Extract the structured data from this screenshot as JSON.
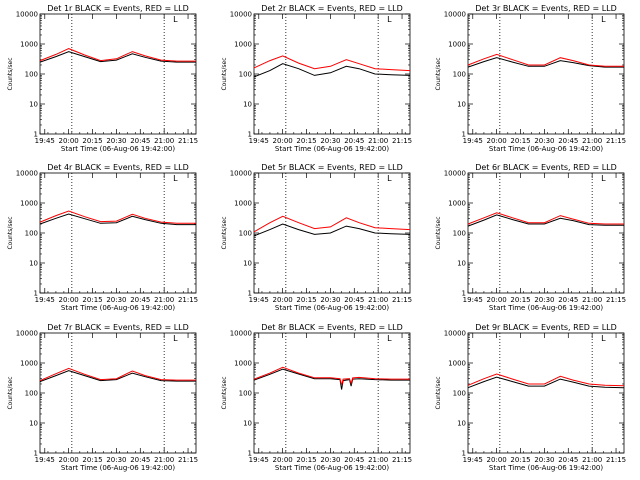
{
  "figure": {
    "y_tick_labels": [
      "1",
      "10",
      "100",
      "1000",
      "10000"
    ],
    "x_tick_labels": [
      "19:45",
      "20:00",
      "20:15",
      "20:30",
      "20:45",
      "21:00",
      "21:15"
    ],
    "xlabel": "Start Time (06-Aug-06 19:42:00)",
    "ylabel": "Counts/sec",
    "corner_marker": "L",
    "series_colors": {
      "events": "#000000",
      "lld": "#ff0000"
    }
  },
  "chart_data": [
    {
      "type": "line",
      "title": "Det 1r BLACK = Events, RED = LLD",
      "xlabel": "Start Time (06-Aug-06 19:42:00)",
      "ylabel": "Counts/sec",
      "x_unit": "minutes after 19:42:00",
      "xlim": [
        0,
        98
      ],
      "ylim": [
        1,
        10000
      ],
      "yscale": "log",
      "vlines": [
        20,
        78
      ],
      "series": [
        {
          "name": "Events",
          "color": "#000000",
          "x": [
            0,
            10,
            18,
            28,
            38,
            48,
            58,
            66,
            76,
            86,
            98
          ],
          "values": [
            250,
            380,
            560,
            380,
            260,
            290,
            470,
            360,
            270,
            250,
            250
          ]
        },
        {
          "name": "LLD",
          "color": "#ff0000",
          "x": [
            0,
            10,
            18,
            28,
            38,
            48,
            58,
            66,
            76,
            86,
            98
          ],
          "values": [
            280,
            450,
            700,
            430,
            280,
            320,
            560,
            400,
            290,
            270,
            270
          ]
        }
      ]
    },
    {
      "type": "line",
      "title": "Det 2r BLACK = Events, RED = LLD",
      "xlabel": "Start Time (06-Aug-06 19:42:00)",
      "ylabel": "Counts/sec",
      "x_unit": "minutes after 19:42:00",
      "xlim": [
        0,
        98
      ],
      "ylim": [
        1,
        10000
      ],
      "yscale": "log",
      "vlines": [
        20,
        78
      ],
      "series": [
        {
          "name": "Events",
          "color": "#000000",
          "x": [
            0,
            10,
            18,
            28,
            38,
            48,
            58,
            66,
            76,
            86,
            98
          ],
          "values": [
            80,
            130,
            220,
            150,
            90,
            110,
            180,
            150,
            100,
            95,
            90
          ]
        },
        {
          "name": "LLD",
          "color": "#ff0000",
          "x": [
            0,
            10,
            18,
            28,
            38,
            48,
            58,
            66,
            76,
            86,
            98
          ],
          "values": [
            160,
            280,
            400,
            230,
            150,
            180,
            300,
            220,
            150,
            140,
            130
          ]
        }
      ]
    },
    {
      "type": "line",
      "title": "Det 3r BLACK = Events, RED = LLD",
      "xlabel": "Start Time (06-Aug-06 19:42:00)",
      "ylabel": "Counts/sec",
      "x_unit": "minutes after 19:42:00",
      "xlim": [
        0,
        98
      ],
      "ylim": [
        1,
        10000
      ],
      "yscale": "log",
      "vlines": [
        20,
        78
      ],
      "series": [
        {
          "name": "Events",
          "color": "#000000",
          "x": [
            0,
            10,
            18,
            28,
            38,
            48,
            58,
            66,
            76,
            86,
            98
          ],
          "values": [
            170,
            260,
            350,
            250,
            180,
            180,
            280,
            240,
            190,
            170,
            170
          ]
        },
        {
          "name": "LLD",
          "color": "#ff0000",
          "x": [
            0,
            10,
            18,
            28,
            38,
            48,
            58,
            66,
            76,
            86,
            98
          ],
          "values": [
            200,
            320,
            450,
            300,
            200,
            200,
            350,
            280,
            200,
            180,
            180
          ]
        }
      ]
    },
    {
      "type": "line",
      "title": "Det 4r BLACK = Events, RED = LLD",
      "xlabel": "Start Time (06-Aug-06 19:42:00)",
      "ylabel": "Counts/sec",
      "x_unit": "minutes after 19:42:00",
      "xlim": [
        0,
        98
      ],
      "ylim": [
        1,
        10000
      ],
      "yscale": "log",
      "vlines": [
        20,
        78
      ],
      "series": [
        {
          "name": "Events",
          "color": "#000000",
          "x": [
            0,
            10,
            18,
            28,
            38,
            48,
            58,
            66,
            76,
            86,
            98
          ],
          "values": [
            200,
            310,
            430,
            300,
            210,
            220,
            360,
            280,
            210,
            190,
            190
          ]
        },
        {
          "name": "LLD",
          "color": "#ff0000",
          "x": [
            0,
            10,
            18,
            28,
            38,
            48,
            58,
            66,
            76,
            86,
            98
          ],
          "values": [
            230,
            380,
            540,
            350,
            240,
            250,
            420,
            310,
            230,
            210,
            210
          ]
        }
      ]
    },
    {
      "type": "line",
      "title": "Det 5r BLACK = Events, RED = LLD",
      "xlabel": "Start Time (06-Aug-06 19:42:00)",
      "ylabel": "Counts/sec",
      "x_unit": "minutes after 19:42:00",
      "xlim": [
        0,
        98
      ],
      "ylim": [
        1,
        10000
      ],
      "yscale": "log",
      "vlines": [
        20,
        78
      ],
      "series": [
        {
          "name": "Events",
          "color": "#000000",
          "x": [
            0,
            10,
            18,
            28,
            38,
            48,
            58,
            66,
            76,
            86,
            98
          ],
          "values": [
            80,
            130,
            200,
            130,
            90,
            100,
            170,
            140,
            100,
            95,
            90
          ]
        },
        {
          "name": "LLD",
          "color": "#ff0000",
          "x": [
            0,
            10,
            18,
            28,
            38,
            48,
            58,
            66,
            76,
            86,
            98
          ],
          "values": [
            110,
            220,
            360,
            220,
            140,
            160,
            320,
            220,
            150,
            140,
            130
          ]
        }
      ]
    },
    {
      "type": "line",
      "title": "Det 6r BLACK = Events, RED = LLD",
      "xlabel": "Start Time (06-Aug-06 19:42:00)",
      "ylabel": "Counts/sec",
      "x_unit": "minutes after 19:42:00",
      "xlim": [
        0,
        98
      ],
      "ylim": [
        1,
        10000
      ],
      "yscale": "log",
      "vlines": [
        20,
        78
      ],
      "series": [
        {
          "name": "Events",
          "color": "#000000",
          "x": [
            0,
            10,
            18,
            28,
            38,
            48,
            58,
            66,
            76,
            86,
            98
          ],
          "values": [
            170,
            270,
            400,
            280,
            200,
            200,
            310,
            260,
            190,
            180,
            180
          ]
        },
        {
          "name": "LLD",
          "color": "#ff0000",
          "x": [
            0,
            10,
            18,
            28,
            38,
            48,
            58,
            66,
            76,
            86,
            98
          ],
          "values": [
            200,
            320,
            470,
            320,
            220,
            220,
            380,
            290,
            210,
            200,
            200
          ]
        }
      ]
    },
    {
      "type": "line",
      "title": "Det 7r BLACK = Events, RED = LLD",
      "xlabel": "Start Time (06-Aug-06 19:42:00)",
      "ylabel": "Counts/sec",
      "x_unit": "minutes after 19:42:00",
      "xlim": [
        0,
        98
      ],
      "ylim": [
        1,
        10000
      ],
      "yscale": "log",
      "vlines": [
        20,
        78
      ],
      "series": [
        {
          "name": "Events",
          "color": "#000000",
          "x": [
            0,
            10,
            18,
            28,
            38,
            48,
            58,
            66,
            76,
            86,
            98
          ],
          "values": [
            240,
            380,
            560,
            380,
            260,
            280,
            460,
            350,
            260,
            250,
            250
          ]
        },
        {
          "name": "LLD",
          "color": "#ff0000",
          "x": [
            0,
            10,
            18,
            28,
            38,
            48,
            58,
            66,
            76,
            86,
            98
          ],
          "values": [
            260,
            440,
            660,
            420,
            280,
            300,
            540,
            380,
            280,
            270,
            270
          ]
        }
      ]
    },
    {
      "type": "line",
      "title": "Det 8r BLACK = Events, RED = LLD",
      "xlabel": "Start Time (06-Aug-06 19:42:00)",
      "ylabel": "Counts/sec",
      "x_unit": "minutes after 19:42:00",
      "xlim": [
        0,
        98
      ],
      "ylim": [
        1,
        10000
      ],
      "yscale": "log",
      "vlines": [
        20,
        78
      ],
      "series": [
        {
          "name": "Events",
          "color": "#000000",
          "x": [
            0,
            10,
            18,
            28,
            38,
            48,
            54,
            55,
            56,
            60,
            61,
            62,
            66,
            76,
            86,
            98
          ],
          "values": [
            270,
            420,
            620,
            430,
            300,
            300,
            280,
            130,
            260,
            280,
            170,
            290,
            300,
            280,
            270,
            270
          ]
        },
        {
          "name": "LLD",
          "color": "#ff0000",
          "x": [
            0,
            10,
            18,
            28,
            38,
            48,
            54,
            55,
            56,
            60,
            61,
            62,
            66,
            76,
            86,
            98
          ],
          "values": [
            290,
            460,
            720,
            460,
            320,
            320,
            300,
            180,
            290,
            300,
            210,
            320,
            330,
            300,
            290,
            290
          ]
        }
      ]
    },
    {
      "type": "line",
      "title": "Det 9r BLACK = Events, RED = LLD",
      "xlabel": "Start Time (06-Aug-06 19:42:00)",
      "ylabel": "Counts/sec",
      "x_unit": "minutes after 19:42:00",
      "xlim": [
        0,
        98
      ],
      "ylim": [
        1,
        10000
      ],
      "yscale": "log",
      "vlines": [
        20,
        78
      ],
      "series": [
        {
          "name": "Events",
          "color": "#000000",
          "x": [
            0,
            10,
            18,
            28,
            38,
            48,
            58,
            66,
            76,
            86,
            98
          ],
          "values": [
            150,
            240,
            340,
            240,
            170,
            170,
            290,
            230,
            170,
            155,
            150
          ]
        },
        {
          "name": "LLD",
          "color": "#ff0000",
          "x": [
            0,
            10,
            18,
            28,
            38,
            48,
            58,
            66,
            76,
            86,
            98
          ],
          "values": [
            180,
            300,
            430,
            290,
            200,
            200,
            360,
            270,
            200,
            180,
            175
          ]
        }
      ]
    }
  ]
}
